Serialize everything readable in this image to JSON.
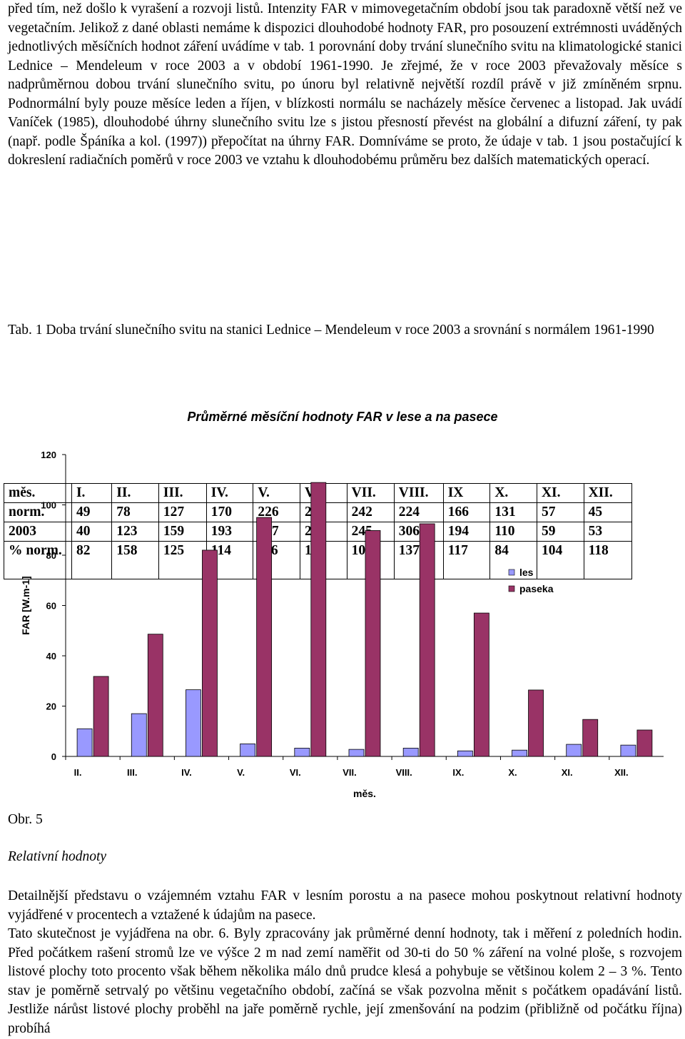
{
  "intro": {
    "line1": "před tím, než došlo k vyrašení a rozvoji listů. Intenzity FAR v mimovegetačním období jsou tak paradoxně větší než ve vegetačním. Jelikož z dané oblasti nemáme k dispozici dlouhodobé hodnoty FAR, pro posouzení extrémnosti uváděných jednotlivých měsíčních hodnot záření uvádíme v tab. 1 porovnání doby trvání slunečního svitu na klimatologické stanici Lednice – Mendeleum v roce 2003 a v období 1961-1990.",
    "line2": " Je zřejmé, že v roce 2003 převažovaly měsíce s nadprůměrnou dobou trvání slunečního svitu, po únoru byl relativně největší rozdíl právě v již zmíněném srpnu. Podnormální byly pouze měsíce leden a říjen, v blízkosti normálu se nacházely měsíce červenec a listopad. Jak uvádí Vaníček (1985), dlouhodobé úhrny slunečního svitu lze s jistou přesností převést na globální a difuzní záření, ty pak (např. podle Špáníka a kol. (1997)) přepočítat na úhrny FAR. Domníváme se proto, že údaje v tab. 1 jsou postačující k dokreslení radiačních poměrů v roce 2003 ve vztahu k dlouhodobému průměru bez dalších matematických operací."
  },
  "table": {
    "rows": [
      [
        "měs.",
        "I.",
        "II.",
        "III.",
        "IV.",
        "V.",
        "VI.",
        "VII.",
        "VIII.",
        "IX",
        "X.",
        "XI.",
        "XII."
      ],
      [
        "norm.",
        "49",
        "78",
        "127",
        "170",
        "226",
        "230",
        "242",
        "224",
        "166",
        "131",
        "57",
        "45"
      ],
      [
        "2003",
        "40",
        "123",
        "159",
        "193",
        "267",
        "285",
        "245",
        "306",
        "194",
        "110",
        "59",
        "53"
      ],
      [
        "% norm.",
        "82",
        "158",
        "125",
        "114",
        "116",
        "124",
        "101",
        "137",
        "117",
        "84",
        "104",
        "118"
      ]
    ],
    "caption": "Tab. 1 Doba trvání slunečního svitu   na stanici Lednice – Mendeleum v roce 2003 a srovnání s normálem 1961-1990"
  },
  "chart_data": {
    "type": "bar",
    "title": "Průměrné měsíční hodnoty FAR v lese a na pasece",
    "xlabel": "měs.",
    "ylabel": "FAR [W.m-1]",
    "ylim": [
      0,
      120
    ],
    "yticks": [
      "0",
      "20",
      "40",
      "60",
      "80",
      "100",
      "120"
    ],
    "categories": [
      "II.",
      "III.",
      "IV.",
      "V.",
      "VI.",
      "VII.",
      "VIII.",
      "IX.",
      "X.",
      "XI.",
      "XII."
    ],
    "series": [
      {
        "name": "les",
        "color": "#9999ff",
        "values": [
          11,
          17,
          26.5,
          5,
          3.3,
          2.8,
          3.3,
          2.2,
          2.5,
          4.8,
          4.5
        ]
      },
      {
        "name": "paseka",
        "color": "#993366",
        "values": [
          31.8,
          48.6,
          82,
          95,
          108.9,
          89.8,
          92.5,
          57,
          26.4,
          14.7,
          10.5
        ]
      }
    ],
    "legend": "right",
    "grid": false
  },
  "figure": {
    "label": "Obr. 5",
    "section_title": "Relativní hodnoty"
  },
  "outro": {
    "p1": "Detailnější představu o vzájemném vztahu FAR v lesním porostu a na pasece mohou poskytnout relativní hodnoty vyjádřené v procentech a vztažené k údajům na pasece.",
    "p2": "Tato skutečnost je vyjádřena na obr. 6. Byly zpracovány jak průměrné denní hodnoty, tak i měření z poledních hodin. Před počátkem rašení stromů lze ve výšce 2 m nad zemí naměřit od 30-ti do 50 % záření na volné ploše, s rozvojem listové plochy toto procento však během několika málo dnů prudce klesá a pohybuje se většinou kolem 2 – 3 %. Tento stav je poměrně setrvalý po většinu vegetačního období, začíná se však pozvolna měnit s počátkem opadávání listů. Jestliže nárůst listové plochy proběhl na jaře poměrně rychle, její zmenšování na podzim (přibližně od počátku října) probíhá"
  }
}
